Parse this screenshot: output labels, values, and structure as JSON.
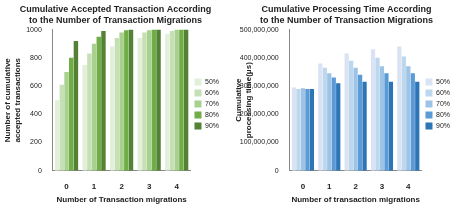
{
  "chart_data": [
    {
      "type": "bar",
      "title": "Cumulative Accepted Transaction According to the Number of Transaction Migrations",
      "x_label": "Number of Transaction migrations",
      "y_label": "Number of cumulative accepted transactions",
      "categories": [
        "0",
        "1",
        "2",
        "3",
        "4"
      ],
      "series": [
        {
          "name": "50%",
          "color": "#e2efd9",
          "values": [
            500,
            750,
            880,
            940,
            970
          ]
        },
        {
          "name": "60%",
          "color": "#c5e0b4",
          "values": [
            610,
            830,
            940,
            980,
            990
          ]
        },
        {
          "name": "70%",
          "color": "#a9d18e",
          "values": [
            700,
            900,
            980,
            995,
            1000
          ]
        },
        {
          "name": "80%",
          "color": "#70ad47",
          "values": [
            800,
            950,
            995,
            1000,
            1000
          ]
        },
        {
          "name": "90%",
          "color": "#548235",
          "values": [
            920,
            990,
            1000,
            1000,
            1000
          ]
        }
      ],
      "ylim": [
        0,
        1000
      ],
      "yticks": [
        0,
        200,
        400,
        600,
        800,
        1000
      ],
      "grid": false,
      "legend": "right"
    },
    {
      "type": "bar",
      "title": "Cumulative Processing Time According to the Number of Transaction Migrations",
      "x_label": "Number of transaction migrations",
      "y_label": "Cumulative processing time(μs)",
      "categories": [
        "0",
        "1",
        "2",
        "3",
        "4"
      ],
      "series": [
        {
          "name": "50%",
          "color": "#dae3f3",
          "values": [
            295000000,
            380000000,
            415000000,
            430000000,
            440000000
          ]
        },
        {
          "name": "60%",
          "color": "#bdd7ee",
          "values": [
            290000000,
            365000000,
            390000000,
            400000000,
            405000000
          ]
        },
        {
          "name": "70%",
          "color": "#9dc3e6",
          "values": [
            292000000,
            345000000,
            365000000,
            370000000,
            370000000
          ]
        },
        {
          "name": "80%",
          "color": "#5b9bd5",
          "values": [
            290000000,
            330000000,
            340000000,
            345000000,
            345000000
          ]
        },
        {
          "name": "90%",
          "color": "#2e75b6",
          "values": [
            290000000,
            310000000,
            315000000,
            315000000,
            315000000
          ]
        }
      ],
      "ylim": [
        0,
        500000000
      ],
      "yticks": [
        0,
        {
          "value": 100000000,
          "label": "100,000,000"
        },
        {
          "value": 200000000,
          "label": "200,000,000"
        },
        {
          "value": 300000000,
          "label": "300,000,000"
        },
        {
          "value": 400000000,
          "label": "400,000,000"
        },
        {
          "value": 500000000,
          "label": "500,000,000"
        }
      ],
      "grid": false,
      "legend": "right"
    }
  ]
}
